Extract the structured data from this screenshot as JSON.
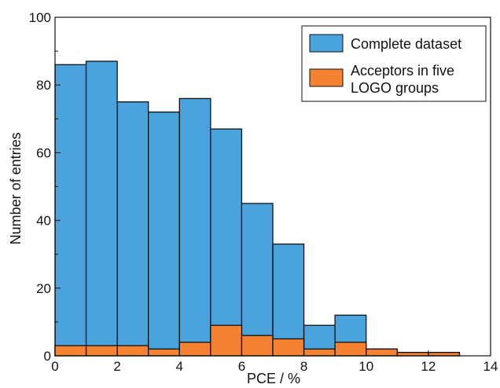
{
  "chart_data": {
    "type": "bar",
    "xlabel": "PCE / %",
    "ylabel": "Number of entries",
    "xlim": [
      0,
      14
    ],
    "ylim": [
      0,
      100
    ],
    "xticks": [
      "0",
      "2",
      "4",
      "6",
      "8",
      "10",
      "12",
      "14"
    ],
    "yticks": [
      "0",
      "20",
      "40",
      "60",
      "80",
      "100"
    ],
    "bin_edges": [
      0,
      1,
      2,
      3,
      4,
      5,
      6,
      7,
      8,
      9,
      10,
      11,
      12,
      13,
      14
    ],
    "grid": false,
    "legend_position": "top-right",
    "series": [
      {
        "name": "Complete dataset",
        "color": "#4aa3dd",
        "values": [
          86,
          87,
          75,
          72,
          76,
          67,
          45,
          33,
          9,
          12,
          2,
          1,
          1,
          0
        ]
      },
      {
        "name": "Acceptors in five LOGO groups",
        "legend_lines": [
          "Acceptors in five",
          "LOGO groups"
        ],
        "color": "#f58231",
        "values": [
          3,
          3,
          3,
          2,
          4,
          9,
          6,
          5,
          2,
          4,
          2,
          1,
          1,
          0
        ]
      }
    ]
  }
}
